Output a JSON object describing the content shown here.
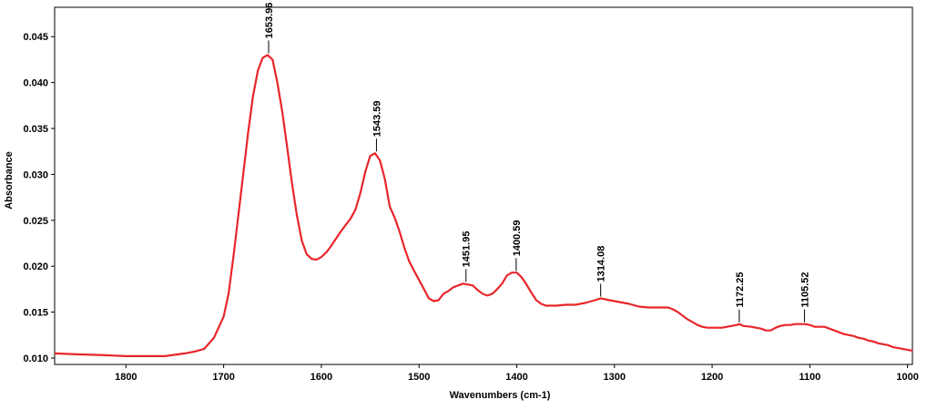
{
  "chart_data": {
    "type": "line",
    "title": "",
    "xlabel": "Wavenumbers (cm-1)",
    "ylabel": "Absorbance",
    "x_reversed": true,
    "xlim": [
      1873,
      995
    ],
    "ylim": [
      0.0093,
      0.0482
    ],
    "grid": false,
    "legend": "none",
    "line_color": "#e8262b",
    "x_ticks": [
      1800,
      1700,
      1600,
      1500,
      1400,
      1300,
      1200,
      1100,
      1000
    ],
    "x_tick_labels": [
      "1800",
      "1700",
      "1600",
      "1500",
      "1400",
      "1300",
      "1200",
      "1100",
      "1000"
    ],
    "y_ticks": [
      0.01,
      0.015,
      0.02,
      0.025,
      0.03,
      0.035,
      0.04,
      0.045
    ],
    "y_tick_labels": [
      "0.010",
      "0.015",
      "0.020",
      "0.025",
      "0.030",
      "0.035",
      "0.040",
      "0.045"
    ],
    "series": [
      {
        "x": [
          1873,
          1850,
          1820,
          1800,
          1780,
          1760,
          1740,
          1730,
          1720,
          1710,
          1700,
          1695,
          1690,
          1685,
          1680,
          1675,
          1670,
          1665,
          1660,
          1655,
          1650,
          1645,
          1640,
          1635,
          1630,
          1625,
          1620,
          1615,
          1610,
          1605,
          1600,
          1595,
          1590,
          1585,
          1580,
          1575,
          1570,
          1565,
          1560,
          1555,
          1550,
          1545,
          1540,
          1535,
          1530,
          1525,
          1520,
          1515,
          1510,
          1505,
          1500,
          1495,
          1490,
          1485,
          1480,
          1475,
          1470,
          1465,
          1460,
          1455,
          1450,
          1445,
          1440,
          1435,
          1430,
          1425,
          1420,
          1415,
          1410,
          1405,
          1400,
          1395,
          1390,
          1385,
          1380,
          1375,
          1370,
          1360,
          1350,
          1340,
          1330,
          1320,
          1314,
          1305,
          1295,
          1285,
          1275,
          1265,
          1255,
          1245,
          1240,
          1235,
          1230,
          1225,
          1220,
          1215,
          1210,
          1205,
          1200,
          1195,
          1190,
          1185,
          1180,
          1175,
          1172,
          1168,
          1160,
          1150,
          1145,
          1140,
          1135,
          1130,
          1125,
          1120,
          1115,
          1110,
          1105,
          1100,
          1095,
          1090,
          1085,
          1080,
          1075,
          1070,
          1065,
          1060,
          1055,
          1050,
          1045,
          1040,
          1035,
          1030,
          1025,
          1020,
          1015,
          1010,
          1005,
          1000,
          995
        ],
        "y": [
          0.0105,
          0.0104,
          0.0103,
          0.0102,
          0.0102,
          0.0102,
          0.0105,
          0.0107,
          0.011,
          0.0122,
          0.0145,
          0.017,
          0.021,
          0.0255,
          0.03,
          0.0345,
          0.0385,
          0.0413,
          0.0427,
          0.043,
          0.0425,
          0.04,
          0.0368,
          0.033,
          0.029,
          0.0255,
          0.0228,
          0.0213,
          0.0208,
          0.0207,
          0.021,
          0.0215,
          0.0222,
          0.023,
          0.0238,
          0.0245,
          0.0252,
          0.0262,
          0.028,
          0.0303,
          0.032,
          0.0323,
          0.0315,
          0.0295,
          0.0265,
          0.0253,
          0.0238,
          0.022,
          0.0205,
          0.0195,
          0.0185,
          0.0175,
          0.0165,
          0.0162,
          0.0163,
          0.017,
          0.0173,
          0.0177,
          0.0179,
          0.0181,
          0.018,
          0.0179,
          0.0174,
          0.017,
          0.0168,
          0.017,
          0.0175,
          0.0181,
          0.019,
          0.0193,
          0.0193,
          0.0188,
          0.018,
          0.0171,
          0.0163,
          0.0159,
          0.0157,
          0.0157,
          0.0158,
          0.0158,
          0.016,
          0.0163,
          0.0165,
          0.0163,
          0.0161,
          0.0159,
          0.0156,
          0.0155,
          0.0155,
          0.0155,
          0.0153,
          0.015,
          0.0146,
          0.0142,
          0.0139,
          0.0136,
          0.0134,
          0.0133,
          0.0133,
          0.0133,
          0.0133,
          0.0134,
          0.0135,
          0.0136,
          0.0137,
          0.0135,
          0.0134,
          0.0132,
          0.013,
          0.013,
          0.0133,
          0.0135,
          0.0136,
          0.0136,
          0.0137,
          0.0137,
          0.0137,
          0.0136,
          0.0134,
          0.0134,
          0.0134,
          0.0132,
          0.013,
          0.0128,
          0.0126,
          0.0125,
          0.0124,
          0.0122,
          0.0121,
          0.0119,
          0.0118,
          0.0116,
          0.0115,
          0.0114,
          0.0112,
          0.0111,
          0.011,
          0.0109,
          0.0108
        ]
      }
    ],
    "annotations": [
      {
        "x": 1653.96,
        "y": 0.043,
        "label": "1653.96"
      },
      {
        "x": 1543.59,
        "y": 0.0323,
        "label": "1543.59"
      },
      {
        "x": 1451.95,
        "y": 0.0181,
        "label": "1451.95"
      },
      {
        "x": 1400.59,
        "y": 0.0193,
        "label": "1400.59"
      },
      {
        "x": 1314.08,
        "y": 0.0165,
        "label": "1314.08"
      },
      {
        "x": 1172.25,
        "y": 0.0137,
        "label": "1172.25"
      },
      {
        "x": 1105.52,
        "y": 0.0137,
        "label": "1105.52"
      }
    ]
  }
}
